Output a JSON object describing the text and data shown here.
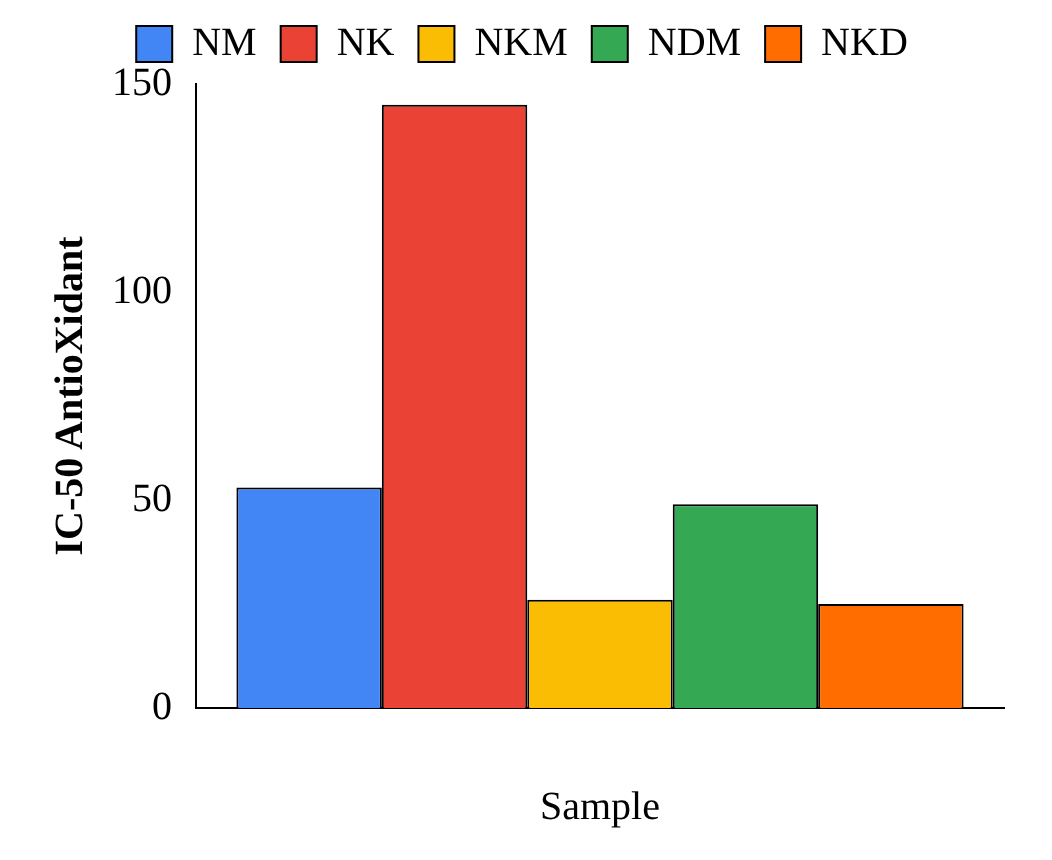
{
  "chart_data": {
    "type": "bar",
    "ylabel": "IC-50 AntioXidant",
    "xlabel": "Sample",
    "categories": [
      null
    ],
    "series": [
      {
        "name": "NM",
        "color": "#4285f4",
        "values": [
          53
        ]
      },
      {
        "name": "NK",
        "color": "#ea4335",
        "values": [
          145
        ]
      },
      {
        "name": "NKM",
        "color": "#fbbc04",
        "values": [
          26
        ]
      },
      {
        "name": "NDM",
        "color": "#34a853",
        "values": [
          49
        ]
      },
      {
        "name": "NKD",
        "color": "#ff6d01",
        "values": [
          25
        ]
      }
    ],
    "ylim": [
      0,
      150
    ],
    "yticks": [
      0,
      50,
      100,
      150
    ],
    "grid": false,
    "legend": "top"
  }
}
